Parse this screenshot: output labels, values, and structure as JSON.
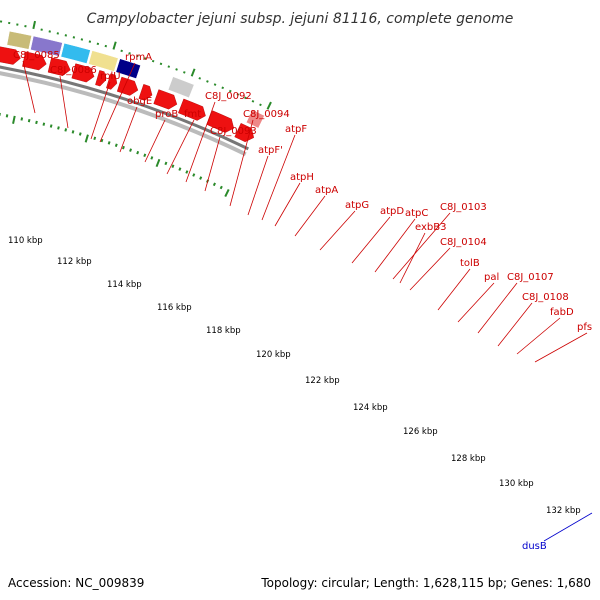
{
  "title": "Campylobacter jejuni subsp. jejuni 81116, complete genome",
  "accession": "Accession: NC_009839",
  "topology": "Topology: circular; Length: 1,628,115 bp; Genes: 1,680",
  "colors": {
    "label_red": "#cc0000",
    "label_blue": "#0000cc",
    "cds_red": "#ee1111",
    "tick_green": "#2a8a2a",
    "backbone": "#999999"
  },
  "kbp_labels": [
    "110 kbp",
    "112 kbp",
    "114 kbp",
    "116 kbp",
    "118 kbp",
    "120 kbp",
    "122 kbp",
    "124 kbp",
    "126 kbp",
    "128 kbp",
    "130 kbp",
    "132 kbp"
  ],
  "gene_labels": [
    {
      "text": "C8J_0085",
      "color": "red"
    },
    {
      "text": "C8J_0086",
      "color": "red"
    },
    {
      "text": "rplU",
      "color": "red"
    },
    {
      "text": "rpmA",
      "color": "red"
    },
    {
      "text": "obgE",
      "color": "red"
    },
    {
      "text": "proB",
      "color": "red"
    },
    {
      "text": "fmt",
      "color": "red"
    },
    {
      "text": "C8J_0092",
      "color": "red"
    },
    {
      "text": "C8J_0093",
      "color": "red"
    },
    {
      "text": "C8J_0094",
      "color": "red"
    },
    {
      "text": "atpF'",
      "color": "red"
    },
    {
      "text": "atpF",
      "color": "red"
    },
    {
      "text": "atpH",
      "color": "red"
    },
    {
      "text": "atpA",
      "color": "red"
    },
    {
      "text": "atpG",
      "color": "red"
    },
    {
      "text": "atpD",
      "color": "red"
    },
    {
      "text": "atpC",
      "color": "red"
    },
    {
      "text": "C8J_0103",
      "color": "red"
    },
    {
      "text": "exbB3",
      "color": "red"
    },
    {
      "text": "C8J_0104",
      "color": "red"
    },
    {
      "text": "tolB",
      "color": "red"
    },
    {
      "text": "pal",
      "color": "red"
    },
    {
      "text": "C8J_0107",
      "color": "red"
    },
    {
      "text": "C8J_0108",
      "color": "red"
    },
    {
      "text": "fabD",
      "color": "red"
    },
    {
      "text": "pfs",
      "color": "red"
    },
    {
      "text": "dusB",
      "color": "blue"
    }
  ]
}
